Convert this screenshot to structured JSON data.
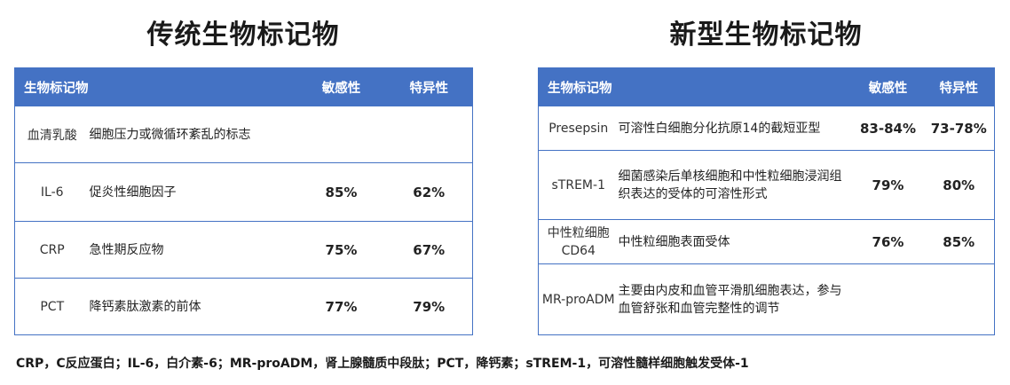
{
  "left": {
    "title": "传统生物标记物",
    "headers": {
      "marker": "生物标记物",
      "sensitivity": "敏感性",
      "specificity": "特异性"
    },
    "group_row": {
      "name": "血清乳酸",
      "desc": "细胞压力或微循环紊乱的标志"
    },
    "rows": [
      {
        "name": "IL-6",
        "desc": "促炎性细胞因子",
        "sensitivity": "85%",
        "specificity": "62%"
      },
      {
        "name": "CRP",
        "desc": "急性期反应物",
        "sensitivity": "75%",
        "specificity": "67%"
      },
      {
        "name": "PCT",
        "desc": "降钙素肽激素的前体",
        "sensitivity": "77%",
        "specificity": "79%"
      }
    ]
  },
  "right": {
    "title": "新型生物标记物",
    "headers": {
      "marker": "生物标记物",
      "sensitivity": "敏感性",
      "specificity": "特异性"
    },
    "rows": [
      {
        "name": "Presepsin",
        "desc": "可溶性白细胞分化抗原14的截短亚型",
        "sensitivity": "83-84%",
        "specificity": "73-78%"
      },
      {
        "name": "sTREM-1",
        "desc": "细菌感染后单核细胞和中性粒细胞浸润组织表达的受体的可溶性形式",
        "sensitivity": "79%",
        "specificity": "80%"
      },
      {
        "name": "中性粒细胞CD64",
        "desc": "中性粒细胞表面受体",
        "sensitivity": "76%",
        "specificity": "85%"
      },
      {
        "name": "MR-proADM",
        "desc": "主要由内皮和血管平滑肌细胞表达，参与血管舒张和血管完整性的调节",
        "sensitivity": "",
        "specificity": ""
      }
    ]
  },
  "footnote": "CRP，C反应蛋白；IL-6，白介素-6；MR-proADM，肾上腺髓质中段肽；PCT，降钙素；sTREM-1，可溶性髓样细胞触发受体-1"
}
